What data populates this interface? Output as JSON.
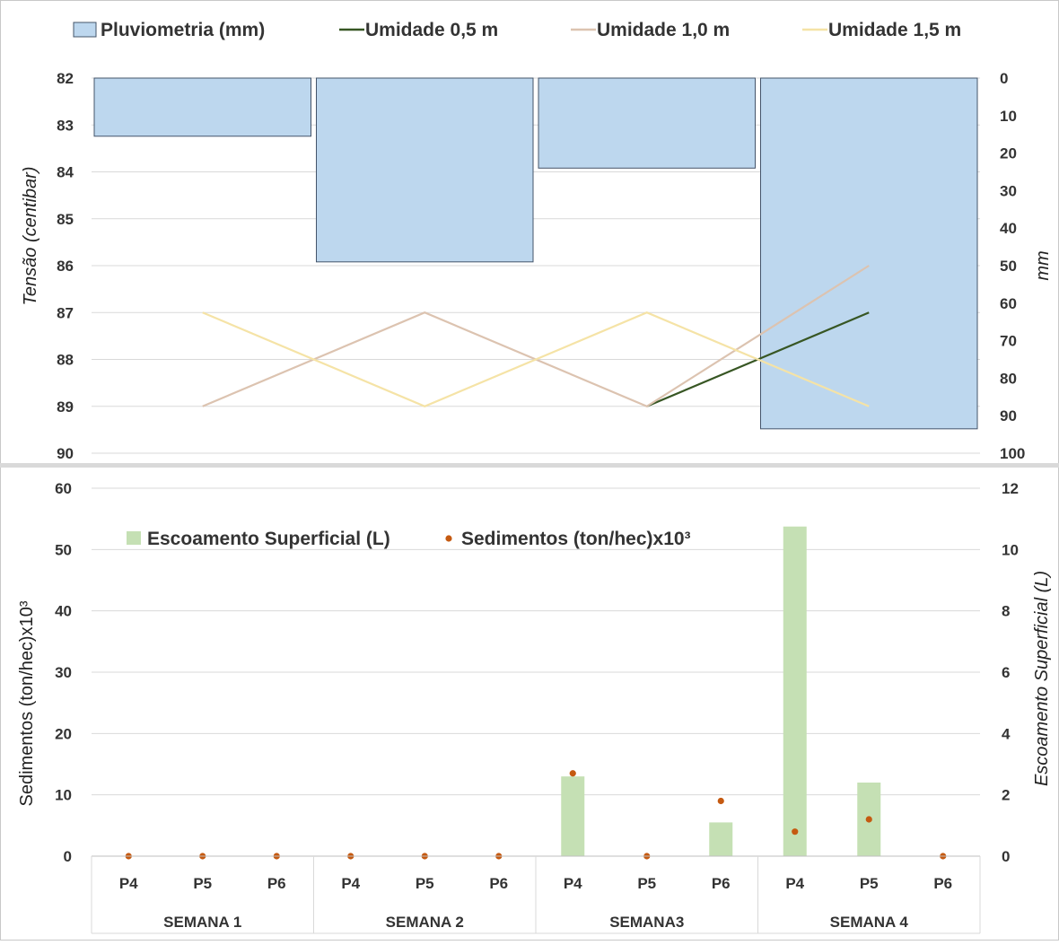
{
  "chart_data": [
    {
      "type": "bar",
      "legend_position": "top",
      "categories": [
        "SEMANA 1",
        "SEMANA 2",
        "SEMANA3",
        "SEMANA 4"
      ],
      "y_left": {
        "label": "Tensão (centibar)",
        "ylim": [
          82,
          90
        ],
        "reversed": true,
        "ticks": [
          "82",
          "83",
          "84",
          "85",
          "86",
          "87",
          "88",
          "89",
          "90"
        ]
      },
      "y_right": {
        "label": "mm",
        "ylim": [
          0,
          100
        ],
        "reversed": true,
        "ticks": [
          "0",
          "10",
          "20",
          "30",
          "40",
          "50",
          "60",
          "70",
          "80",
          "90",
          "100"
        ]
      },
      "grid": true,
      "series": [
        {
          "name": "Pluviometria (mm)",
          "type": "bar",
          "axis": "right",
          "color": "#bdd7ee",
          "edge": "#44546a",
          "values": [
            15.5,
            49,
            24,
            93.5
          ]
        },
        {
          "name": "Umidade 0,5 m",
          "type": "line",
          "axis": "left",
          "color": "#375623",
          "points": [
            [
              2.5,
              89
            ],
            [
              3,
              88
            ],
            [
              3.5,
              87
            ]
          ]
        },
        {
          "name": "Umidade 1,0 m",
          "type": "line",
          "axis": "left",
          "color": "#dcc3b0",
          "points": [
            [
              0.5,
              89
            ],
            [
              1.5,
              87
            ],
            [
              2.5,
              89
            ],
            [
              3.5,
              86
            ]
          ]
        },
        {
          "name": "Umidade 1,5 m",
          "type": "line",
          "axis": "left",
          "color": "#f5e3a6",
          "points": [
            [
              0.5,
              87
            ],
            [
              1.5,
              89
            ],
            [
              2.5,
              87
            ],
            [
              3.5,
              89
            ]
          ]
        }
      ]
    },
    {
      "type": "bar",
      "legend_position": "top-left",
      "groups": [
        "SEMANA 1",
        "SEMANA 2",
        "SEMANA3",
        "SEMANA 4"
      ],
      "categories": [
        "P4",
        "P5",
        "P6",
        "P4",
        "P5",
        "P6",
        "P4",
        "P5",
        "P6",
        "P4",
        "P5",
        "P6"
      ],
      "y_left": {
        "label": "Sedimentos (ton/hec)x10³",
        "ylim": [
          0,
          60
        ],
        "ticks": [
          "0",
          "10",
          "20",
          "30",
          "40",
          "50",
          "60"
        ]
      },
      "y_right": {
        "label": "Escoamento Superficial (L)",
        "ylim": [
          0,
          12
        ],
        "ticks": [
          "0",
          "2",
          "4",
          "6",
          "8",
          "10",
          "12"
        ]
      },
      "grid": true,
      "series": [
        {
          "name": "Escoamento Superficial (L)",
          "type": "bar",
          "axis": "right",
          "color": "#c5e0b4",
          "values": [
            0,
            0,
            0,
            0,
            0,
            0,
            2.6,
            0,
            1.1,
            10.75,
            2.4,
            0
          ]
        },
        {
          "name": "Sedimentos (ton/hec)x10³",
          "type": "scatter",
          "axis": "left",
          "color": "#c55a11",
          "values": [
            0,
            0,
            0,
            0,
            0,
            0,
            13.5,
            0,
            9,
            4,
            6,
            0
          ]
        }
      ]
    }
  ]
}
